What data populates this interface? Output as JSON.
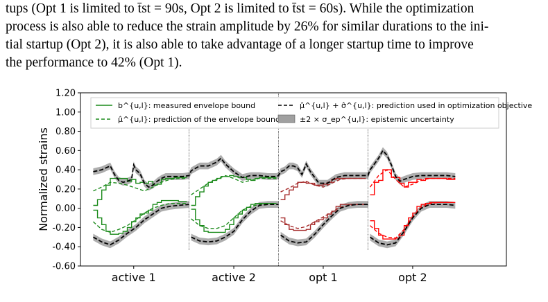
{
  "text": {
    "line1": "tups (Opt 1 is limited to t̄st = 90s, Opt 2 is limited to t̄st = 60s). While the optimization",
    "line2": "process is also able to reduce the strain amplitude by 26% for similar durations to the ini-",
    "line3": "tial startup (Opt 2), it is also able to take advantage of a longer startup time to improve",
    "line4": "the performance to 42% (Opt 1)."
  },
  "chart_data": {
    "type": "line",
    "title": "",
    "xlabel": "",
    "ylabel": "Normalized strains",
    "ylim": [
      -0.6,
      1.2
    ],
    "yticks": [
      "1.20",
      "1.00",
      "0.80",
      "0.60",
      "0.40",
      "0.20",
      "0.00",
      "-0.20",
      "-0.40",
      "-0.60"
    ],
    "categories": [
      "active 1",
      "active 2",
      "opt 1",
      "opt 2"
    ],
    "x_range": [
      0,
      100
    ],
    "section_boundaries": [
      25.5,
      46.5,
      67.5
    ],
    "legend": {
      "placement": "top",
      "entries": [
        {
          "label": "b^{u,l}: measured envelope bound",
          "style": "solid",
          "color": "#2ca02c"
        },
        {
          "label": "μ̂^{u,l}: prediction of the envelope bound",
          "style": "dashed",
          "color": "#2ca02c"
        },
        {
          "label": "μ̂^{u,l} + σ̂^{u,l}: prediction used in optimization objective",
          "style": "dashed",
          "color": "#000000"
        },
        {
          "label": "±2 × σ_ep^{u,l}: epistemic uncertainty",
          "style": "band",
          "color": "#999999"
        }
      ]
    },
    "colors": {
      "active": "#1a8a1a",
      "opt1": "#a52a2a",
      "opt2": "#ff0000",
      "objective": "#000000",
      "band": "#a0a0a0"
    },
    "series": [
      {
        "name": "b^{u,l}: measured envelope bound",
        "segment": "active 1",
        "bound": "upper",
        "x": [
          3,
          4,
          5,
          6,
          7,
          8,
          9,
          10,
          11,
          12,
          13,
          14,
          15,
          16,
          17,
          18,
          19,
          20,
          21,
          22,
          23,
          24,
          25
        ],
        "values": [
          0.03,
          0.09,
          0.19,
          0.24,
          0.31,
          0.31,
          0.31,
          0.31,
          0.28,
          0.3,
          0.26,
          0.27,
          0.26,
          0.28,
          0.24,
          0.25,
          0.3,
          0.31,
          0.31,
          0.32,
          0.32,
          0.32,
          0.32
        ]
      },
      {
        "name": "b^{u,l}: measured envelope bound",
        "segment": "active 1",
        "bound": "lower",
        "x": [
          3,
          4,
          5,
          6,
          7,
          8,
          9,
          10,
          11,
          12,
          13,
          14,
          15,
          16,
          17,
          18,
          19,
          20,
          21,
          22,
          23,
          24,
          25
        ],
        "values": [
          -0.02,
          -0.1,
          -0.17,
          -0.24,
          -0.27,
          -0.27,
          -0.26,
          -0.24,
          -0.2,
          -0.14,
          -0.1,
          -0.06,
          -0.05,
          -0.02,
          0.04,
          0.06,
          0.08,
          0.08,
          0.08,
          0.08,
          0.07,
          0.07,
          0.07
        ]
      },
      {
        "name": "μ̂^{u,l}: prediction of the envelope bound",
        "segment": "active 1",
        "bound": "upper",
        "x": [
          3,
          5,
          7,
          9,
          11,
          13,
          15,
          17,
          19,
          21,
          23,
          25
        ],
        "values": [
          0.18,
          0.22,
          0.27,
          0.26,
          0.24,
          0.21,
          0.18,
          0.22,
          0.27,
          0.3,
          0.31,
          0.31
        ]
      },
      {
        "name": "μ̂^{u,l}: prediction of the envelope bound",
        "segment": "active 1",
        "bound": "lower",
        "x": [
          3,
          5,
          7,
          9,
          11,
          13,
          15,
          17,
          19,
          21,
          23,
          25
        ],
        "values": [
          -0.14,
          -0.22,
          -0.25,
          -0.22,
          -0.18,
          -0.12,
          -0.05,
          0.0,
          0.03,
          0.05,
          0.05,
          0.05
        ]
      },
      {
        "name": "b^{u,l}: measured envelope bound",
        "segment": "active 2",
        "bound": "upper",
        "x": [
          26,
          27,
          28,
          29,
          30,
          31,
          32,
          33,
          34,
          35,
          36,
          37,
          38,
          39,
          40,
          41,
          42,
          43,
          44,
          45,
          46
        ],
        "values": [
          0.03,
          0.12,
          0.17,
          0.23,
          0.27,
          0.29,
          0.31,
          0.33,
          0.33,
          0.34,
          0.33,
          0.32,
          0.32,
          0.3,
          0.29,
          0.31,
          0.32,
          0.32,
          0.32,
          0.32,
          0.32
        ]
      },
      {
        "name": "b^{u,l}: measured envelope bound",
        "segment": "active 2",
        "bound": "lower",
        "x": [
          26,
          27,
          28,
          29,
          30,
          31,
          32,
          33,
          34,
          35,
          36,
          37,
          38,
          39,
          40,
          41,
          42,
          43,
          44,
          45,
          46
        ],
        "values": [
          -0.01,
          -0.12,
          -0.18,
          -0.24,
          -0.25,
          -0.25,
          -0.25,
          -0.25,
          -0.22,
          -0.17,
          -0.1,
          -0.06,
          -0.02,
          0.01,
          0.04,
          0.05,
          0.05,
          0.05,
          0.05,
          0.05,
          0.05
        ]
      },
      {
        "name": "μ̂^{u,l}: prediction of the envelope bound",
        "segment": "active 2",
        "bound": "upper",
        "x": [
          26,
          28,
          30,
          32,
          34,
          36,
          38,
          40,
          42,
          44,
          46
        ],
        "values": [
          0.14,
          0.2,
          0.26,
          0.3,
          0.34,
          0.31,
          0.27,
          0.29,
          0.31,
          0.31,
          0.31
        ]
      },
      {
        "name": "μ̂^{u,l}: prediction of the envelope bound",
        "segment": "active 2",
        "bound": "lower",
        "x": [
          26,
          28,
          30,
          32,
          34,
          36,
          38,
          40,
          42,
          44,
          46
        ],
        "values": [
          -0.11,
          -0.18,
          -0.21,
          -0.21,
          -0.18,
          -0.1,
          -0.02,
          0.02,
          0.04,
          0.05,
          0.05
        ]
      },
      {
        "name": "b^{u,l}: measured envelope bound",
        "segment": "opt 1",
        "bound": "upper",
        "x": [
          47,
          48,
          49,
          50,
          51,
          52,
          53,
          54,
          55,
          56,
          57,
          58,
          59,
          60,
          61,
          62,
          63,
          64,
          65,
          66,
          67
        ],
        "values": [
          0.09,
          0.14,
          0.19,
          0.22,
          0.27,
          0.27,
          0.26,
          0.26,
          0.24,
          0.24,
          0.25,
          0.27,
          0.3,
          0.31,
          0.31,
          0.31,
          0.31,
          0.31,
          0.31,
          0.31,
          0.31
        ]
      },
      {
        "name": "b^{u,l}: measured envelope bound",
        "segment": "opt 1",
        "bound": "lower",
        "x": [
          47,
          48,
          49,
          50,
          51,
          52,
          53,
          54,
          55,
          56,
          57,
          58,
          59,
          60,
          61,
          62,
          63,
          64,
          65,
          66,
          67
        ],
        "values": [
          -0.1,
          -0.17,
          -0.22,
          -0.23,
          -0.23,
          -0.23,
          -0.22,
          -0.17,
          -0.14,
          -0.12,
          -0.1,
          -0.06,
          -0.03,
          0.02,
          0.04,
          0.04,
          0.04,
          0.04,
          0.04,
          0.04,
          0.04
        ]
      },
      {
        "name": "μ̂^{u,l}: prediction of the envelope bound",
        "segment": "opt 1",
        "bound": "upper",
        "x": [
          47,
          49,
          51,
          53,
          55,
          57,
          59,
          61,
          63,
          65,
          67
        ],
        "values": [
          0.17,
          0.21,
          0.26,
          0.28,
          0.24,
          0.22,
          0.26,
          0.3,
          0.31,
          0.31,
          0.31
        ]
      },
      {
        "name": "μ̂^{u,l}: prediction of the envelope bound",
        "segment": "opt 1",
        "bound": "lower",
        "x": [
          47,
          49,
          51,
          53,
          55,
          57,
          59,
          61,
          63,
          65,
          67
        ],
        "values": [
          -0.13,
          -0.18,
          -0.21,
          -0.19,
          -0.14,
          -0.09,
          -0.04,
          0.01,
          0.03,
          0.04,
          0.04
        ]
      },
      {
        "name": "b^{u,l}: measured envelope bound",
        "segment": "opt 2",
        "bound": "upper",
        "x": [
          68,
          69,
          70,
          71,
          72,
          73,
          74,
          75,
          76,
          77,
          78,
          79,
          80,
          81,
          82,
          83,
          84,
          85,
          86,
          87,
          88
        ],
        "values": [
          0.14,
          0.27,
          0.29,
          0.4,
          0.4,
          0.32,
          0.32,
          0.26,
          0.22,
          0.27,
          0.27,
          0.3,
          0.29,
          0.31,
          0.31,
          0.31,
          0.31,
          0.31,
          0.3,
          0.3,
          0.3
        ]
      },
      {
        "name": "b^{u,l}: measured envelope bound",
        "segment": "opt 2",
        "bound": "lower",
        "x": [
          68,
          69,
          70,
          71,
          72,
          73,
          74,
          75,
          76,
          77,
          78,
          79,
          80,
          81,
          82,
          83,
          84,
          85,
          86,
          87,
          88
        ],
        "values": [
          -0.13,
          -0.21,
          -0.28,
          -0.32,
          -0.32,
          -0.32,
          -0.31,
          -0.28,
          -0.18,
          -0.1,
          -0.05,
          0.02,
          0.04,
          0.05,
          0.06,
          0.06,
          0.06,
          0.06,
          0.06,
          0.06,
          0.06
        ]
      },
      {
        "name": "μ̂^{u,l}: prediction of the envelope bound",
        "segment": "opt 2",
        "bound": "upper",
        "x": [
          68,
          70,
          72,
          74,
          76,
          78,
          80,
          82,
          84,
          86,
          88
        ],
        "values": [
          0.22,
          0.34,
          0.4,
          0.3,
          0.22,
          0.25,
          0.29,
          0.31,
          0.31,
          0.31,
          0.31
        ]
      },
      {
        "name": "μ̂^{u,l}: prediction of the envelope bound",
        "segment": "opt 2",
        "bound": "lower",
        "x": [
          68,
          70,
          72,
          74,
          76,
          78,
          80,
          82,
          84,
          86,
          88
        ],
        "values": [
          -0.18,
          -0.26,
          -0.3,
          -0.31,
          -0.22,
          -0.09,
          0.01,
          0.05,
          0.06,
          0.06,
          0.06
        ]
      },
      {
        "name": "μ̂^{u,l} + σ̂^{u,l}: prediction used in optimization objective",
        "bound": "upper",
        "x": [
          3,
          5,
          7,
          8,
          9,
          10,
          11,
          12,
          12.5,
          13,
          14,
          15,
          16,
          17,
          18,
          19,
          20,
          22,
          24,
          25.5,
          26,
          28,
          30,
          32,
          33,
          34,
          36,
          38,
          40,
          42,
          44,
          46,
          46.5,
          47,
          48,
          49,
          50,
          51,
          52,
          53,
          54,
          56,
          58,
          60,
          62,
          64,
          66,
          67.5,
          68,
          69,
          70,
          71,
          72,
          73,
          74,
          75,
          76,
          78,
          80,
          82,
          84,
          86,
          88
        ],
        "values": [
          0.38,
          0.4,
          0.44,
          0.35,
          0.29,
          0.27,
          0.28,
          0.3,
          0.45,
          0.4,
          0.36,
          0.26,
          0.22,
          0.24,
          0.28,
          0.31,
          0.33,
          0.33,
          0.33,
          0.34,
          0.39,
          0.44,
          0.44,
          0.48,
          0.52,
          0.46,
          0.38,
          0.32,
          0.34,
          0.34,
          0.33,
          0.33,
          0.34,
          0.38,
          0.4,
          0.44,
          0.44,
          0.42,
          0.35,
          0.46,
          0.38,
          0.26,
          0.26,
          0.32,
          0.34,
          0.34,
          0.34,
          0.34,
          0.4,
          0.46,
          0.52,
          0.6,
          0.55,
          0.45,
          0.33,
          0.28,
          0.3,
          0.33,
          0.34,
          0.34,
          0.34,
          0.34,
          0.33
        ]
      },
      {
        "name": "μ̂^{u,l} + σ̂^{u,l}: prediction used in optimization objective",
        "bound": "lower",
        "x": [
          3,
          5,
          7,
          9,
          11,
          13,
          15,
          17,
          19,
          21,
          23,
          25.5,
          26,
          28,
          30,
          32,
          34,
          36,
          38,
          40,
          42,
          44,
          46.5,
          47,
          49,
          51,
          53,
          55,
          57,
          59,
          61,
          63,
          65,
          67.5,
          68,
          70,
          72,
          74,
          76,
          78,
          80,
          82,
          84,
          86,
          88
        ],
        "values": [
          -0.3,
          -0.35,
          -0.38,
          -0.33,
          -0.26,
          -0.2,
          -0.12,
          -0.06,
          0.0,
          0.02,
          0.03,
          0.04,
          -0.3,
          -0.34,
          -0.35,
          -0.34,
          -0.3,
          -0.24,
          -0.12,
          -0.03,
          0.03,
          0.04,
          0.04,
          -0.28,
          -0.34,
          -0.36,
          -0.35,
          -0.27,
          -0.17,
          -0.08,
          0.0,
          0.03,
          0.04,
          0.04,
          -0.3,
          -0.36,
          -0.38,
          -0.36,
          -0.24,
          -0.1,
          0.0,
          0.04,
          0.04,
          0.04,
          0.03
        ]
      }
    ]
  }
}
